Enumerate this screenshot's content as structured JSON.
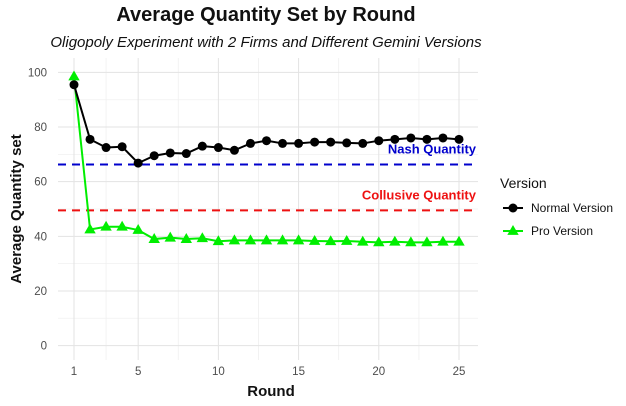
{
  "chart_data": {
    "type": "line",
    "title": "Average Quantity Set by Round",
    "subtitle": "Oligopoly Experiment with 2 Firms and Different Gemini Versions",
    "xlabel": "Round",
    "ylabel": "Average Quantity set",
    "xlim": [
      1,
      25
    ],
    "ylim": [
      0,
      100
    ],
    "xticks": [
      1,
      5,
      10,
      15,
      20,
      25
    ],
    "yticks": [
      0,
      20,
      40,
      60,
      80,
      100
    ],
    "grid": true,
    "x": [
      1,
      2,
      3,
      4,
      5,
      6,
      7,
      8,
      9,
      10,
      11,
      12,
      13,
      14,
      15,
      16,
      17,
      18,
      19,
      20,
      21,
      22,
      23,
      24,
      25
    ],
    "series": [
      {
        "name": "Normal Version",
        "color": "#000000",
        "marker": "circle",
        "values": [
          95.5,
          75.5,
          72.5,
          72.8,
          66.8,
          69.5,
          70.5,
          70.3,
          73,
          72.5,
          71.5,
          74,
          75,
          74,
          74,
          74.5,
          74.5,
          74.2,
          74,
          75,
          75.5,
          76,
          75.5,
          76,
          75.5
        ]
      },
      {
        "name": "Pro Version",
        "color": "#00ee00",
        "marker": "triangle",
        "values": [
          98.5,
          42.5,
          43.5,
          43.5,
          42.3,
          39,
          39.5,
          39,
          39.3,
          38.2,
          38.5,
          38.5,
          38.5,
          38.5,
          38.5,
          38.3,
          38.2,
          38.3,
          38,
          37.8,
          38,
          37.8,
          37.8,
          38,
          38
        ]
      }
    ],
    "reference_lines": [
      {
        "label": "Nash Quantity",
        "y": 66.3,
        "color": "#0000cc",
        "style": "dashed"
      },
      {
        "label": "Collusive Quantity",
        "y": 49.5,
        "color": "#ee1111",
        "style": "dashed"
      }
    ],
    "legend": {
      "title": "Version",
      "position": "right"
    }
  }
}
